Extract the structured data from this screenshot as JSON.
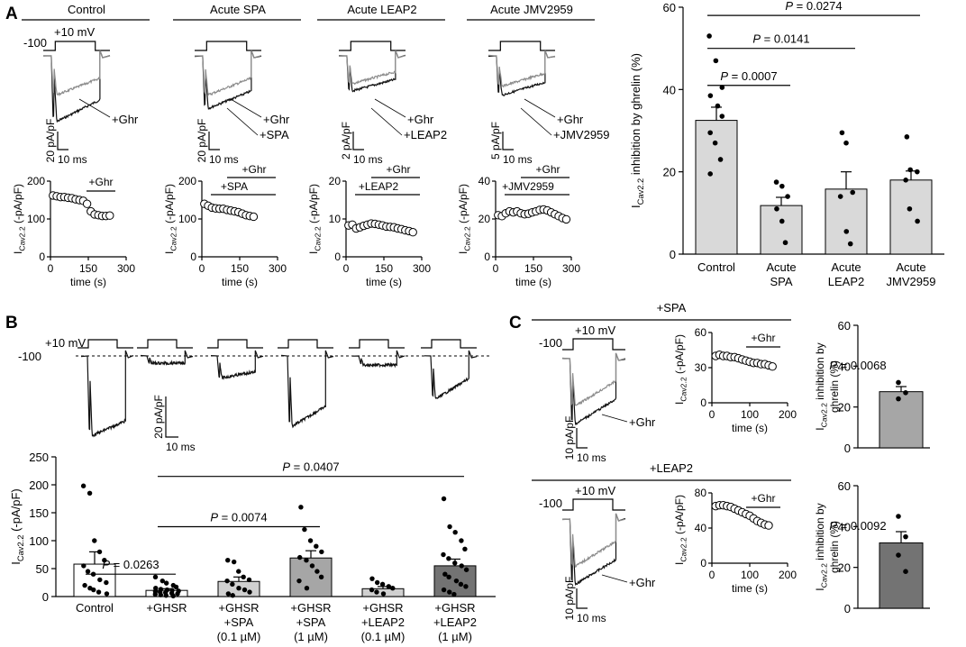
{
  "panels": {
    "a": "A",
    "b": "B",
    "c": "C"
  },
  "panelA": {
    "groups": [
      {
        "title": "Control",
        "hold": "-100",
        "step": "+10 mV",
        "trace_labels": [
          "+Ghr"
        ],
        "scale_current": "20 pA/pF",
        "scale_time": "10 ms",
        "tc_labels": [
          "+Ghr"
        ],
        "tc_yticks": [
          "0",
          "100",
          "200"
        ],
        "tc_xticks": [
          "0",
          "150",
          "300"
        ]
      },
      {
        "title": "Acute SPA",
        "trace_labels": [
          "+Ghr",
          "+SPA"
        ],
        "scale_current": "20 pA/pF",
        "scale_time": "10 ms",
        "tc_labels": [
          "+Ghr",
          "+SPA"
        ],
        "tc_yticks": [
          "0",
          "100",
          "200"
        ],
        "tc_xticks": [
          "0",
          "150",
          "300"
        ]
      },
      {
        "title": "Acute LEAP2",
        "trace_labels": [
          "+Ghr",
          "+LEAP2"
        ],
        "scale_current": "2 pA/pF",
        "scale_time": "10 ms",
        "tc_labels": [
          "+Ghr",
          "+LEAP2"
        ],
        "tc_yticks": [
          "0",
          "10",
          "20"
        ],
        "tc_xticks": [
          "0",
          "150",
          "300"
        ]
      },
      {
        "title": "Acute JMV2959",
        "trace_labels": [
          "+Ghr",
          "+JMV2959"
        ],
        "scale_current": "5 pA/pF",
        "scale_time": "10 ms",
        "tc_labels": [
          "+Ghr",
          "+JMV2959"
        ],
        "tc_yticks": [
          "0",
          "20",
          "40"
        ],
        "tc_xticks": [
          "0",
          "150",
          "300"
        ]
      }
    ],
    "tc_ylabel_main": "I",
    "tc_ylabel_sub": "CaV2.2",
    "tc_ylabel_unit": " (-pA/pF)",
    "tc_xlabel": "time (s)"
  },
  "panelB": {
    "hold": "-100",
    "step": "+10 mV",
    "scale_current": "20 pA/pF",
    "scale_time": "10 ms",
    "ylabel_main": "I",
    "ylabel_sub": "CaV2.2",
    "ylabel_unit": " (-pA/pF)",
    "sig": [
      {
        "text": "P = 0.0263"
      },
      {
        "text": "P = 0.0074"
      },
      {
        "text": "P = 0.0407"
      }
    ],
    "xlabels": [
      [
        "Control"
      ],
      [
        "+GHSR"
      ],
      [
        "+GHSR",
        "+SPA",
        "(0.1 µM)"
      ],
      [
        "+GHSR",
        "+SPA",
        "(1 µM)"
      ],
      [
        "+GHSR",
        "+LEAP2",
        "(0.1 µM)"
      ],
      [
        "+GHSR",
        "+LEAP2",
        "(1 µM)"
      ]
    ]
  },
  "panelC": {
    "rows": [
      {
        "title": "+SPA",
        "hold": "-100",
        "step": "+10 mV",
        "trace_label": "+Ghr",
        "scale_current": "10 pA/pF",
        "scale_time": "10 ms",
        "tc_label": "+Ghr",
        "tc_yticks": [
          "0",
          "30",
          "60"
        ],
        "tc_xticks": [
          "0",
          "100",
          "200"
        ],
        "p": "P = 0.0068"
      },
      {
        "title": "+LEAP2",
        "hold": "-100",
        "step": "+10 mV",
        "trace_label": "+Ghr",
        "scale_current": "10 pA/pF",
        "scale_time": "10 ms",
        "tc_label": "+Ghr",
        "tc_yticks": [
          "0",
          "40",
          "80"
        ],
        "tc_xticks": [
          "0",
          "100",
          "200"
        ],
        "p": "P = 0.0092"
      }
    ],
    "tc_xlabel": "time (s)",
    "bar_ylabel_line1": "inhibition by",
    "bar_ylabel_line2": "ghrelin (%)"
  },
  "chart_data": [
    {
      "id": "A-bar",
      "type": "bar",
      "title": "",
      "ylabel": "ICaV2.2 inhibition by ghrelin (%)",
      "ylim": [
        0,
        60
      ],
      "yticks": [
        "0",
        "20",
        "40",
        "60"
      ],
      "categories": [
        [
          "Control"
        ],
        [
          "Acute",
          "SPA"
        ],
        [
          "Acute",
          "LEAP2"
        ],
        [
          "Acute",
          "JMV2959"
        ]
      ],
      "values": [
        32.5,
        11.8,
        15.8,
        18.0
      ],
      "errors": [
        3.2,
        2.0,
        4.2,
        2.2
      ],
      "colors": [
        "#d9d9d9",
        "#d9d9d9",
        "#d9d9d9",
        "#d9d9d9"
      ],
      "points": [
        [
          53,
          47,
          40.5,
          38.5,
          36,
          33.5,
          29.5,
          27,
          23,
          19.5
        ],
        [
          17.5,
          16.5,
          14,
          11,
          8,
          2.8
        ],
        [
          29.5,
          27,
          15,
          14,
          5.5,
          2.5
        ],
        [
          28.5,
          20.5,
          20,
          18,
          11,
          8
        ]
      ],
      "sig": [
        {
          "from": 0,
          "to": 1,
          "text": "P = 0.0007",
          "y": 41
        },
        {
          "from": 0,
          "to": 2,
          "text": "P = 0.0141",
          "y": 50
        },
        {
          "from": 0,
          "to": 3,
          "text": "P = 0.0274",
          "y": 58
        }
      ]
    },
    {
      "id": "B-bar",
      "type": "bar",
      "ylabel": "ICaV2.2 (-pA/pF)",
      "ylim": [
        0,
        250
      ],
      "yticks": [
        "0",
        "50",
        "100",
        "150",
        "200",
        "250"
      ],
      "categories": [
        "Control",
        "+GHSR",
        "+GHSR +SPA (0.1 µM)",
        "+GHSR +SPA (1 µM)",
        "+GHSR +LEAP2 (0.1 µM)",
        "+GHSR +LEAP2 (1 µM)"
      ],
      "values": [
        58,
        11,
        27,
        69,
        14,
        55
      ],
      "errors": [
        22,
        3,
        8,
        13,
        4,
        12
      ],
      "colors": [
        "#ffffff",
        "#ffffff",
        "#d0d0d0",
        "#a6a6a6",
        "#d0d0d0",
        "#737373"
      ],
      "points": [
        [
          198,
          185,
          100,
          80,
          65,
          55,
          45,
          40,
          30,
          25,
          20,
          15,
          12,
          8,
          5
        ],
        [
          35,
          28,
          24,
          20,
          17,
          15,
          13,
          12,
          11,
          10,
          9,
          8,
          7,
          6,
          5,
          4,
          3,
          2,
          1
        ],
        [
          65,
          62,
          45,
          35,
          30,
          28,
          22,
          15,
          12,
          8,
          5,
          2
        ],
        [
          160,
          120,
          100,
          90,
          80,
          70,
          65,
          55,
          45,
          35,
          28,
          15
        ],
        [
          32,
          25,
          22,
          18,
          15,
          12,
          8,
          5
        ],
        [
          175,
          125,
          115,
          100,
          85,
          75,
          68,
          60,
          55,
          48,
          40,
          35,
          28,
          22,
          18,
          12,
          8,
          4
        ]
      ],
      "sig": [
        {
          "from": 0,
          "to": 1,
          "text": "P = 0.0263",
          "y": 40
        },
        {
          "from": 1,
          "to": 3,
          "text": "P = 0.0074",
          "y": 125
        },
        {
          "from": 1,
          "to": 5,
          "text": "P = 0.0407",
          "y": 215
        }
      ]
    },
    {
      "id": "C-bar-SPA",
      "type": "bar",
      "ylabel": "ICaV2.2 inhibition by ghrelin (%)",
      "ylim": [
        0,
        60
      ],
      "yticks": [
        "0",
        "20",
        "40",
        "60"
      ],
      "values": [
        27.5
      ],
      "errors": [
        2.5
      ],
      "colors": [
        "#a6a6a6"
      ],
      "points": [
        [
          32,
          27,
          24
        ]
      ],
      "p": "P = 0.0068"
    },
    {
      "id": "C-bar-LEAP2",
      "type": "bar",
      "ylabel": "ICaV2.2 inhibition by ghrelin (%)",
      "ylim": [
        0,
        60
      ],
      "yticks": [
        "0",
        "20",
        "40",
        "60"
      ],
      "values": [
        32
      ],
      "errors": [
        5.5
      ],
      "colors": [
        "#737373"
      ],
      "points": [
        [
          45,
          35,
          26,
          18
        ]
      ],
      "p": "P = 0.0092"
    },
    {
      "id": "A-timecourse",
      "type": "scatter",
      "xlabel": "time (s)",
      "series": [
        {
          "name": "Control",
          "x": [
            10,
            25,
            40,
            55,
            70,
            85,
            100,
            115,
            130,
            145,
            160,
            175,
            190,
            205,
            220,
            235
          ],
          "y": [
            162,
            160,
            158,
            158,
            156,
            155,
            152,
            150,
            148,
            140,
            120,
            112,
            110,
            108,
            108,
            109
          ]
        },
        {
          "name": "Acute SPA",
          "x": [
            10,
            25,
            40,
            55,
            70,
            85,
            100,
            115,
            130,
            145,
            160,
            175,
            190,
            205
          ],
          "y": [
            140,
            135,
            130,
            128,
            127,
            127,
            124,
            122,
            120,
            118,
            114,
            110,
            108,
            106
          ]
        },
        {
          "name": "Acute LEAP2",
          "x": [
            10,
            25,
            40,
            55,
            70,
            85,
            100,
            115,
            130,
            145,
            160,
            175,
            190,
            205,
            220,
            235,
            250,
            265
          ],
          "y": [
            8.3,
            8.5,
            7.5,
            7.8,
            8.2,
            8.5,
            8.8,
            8.7,
            8.5,
            8.3,
            8.0,
            7.9,
            7.8,
            7.5,
            7.3,
            7.0,
            6.8,
            6.5
          ]
        },
        {
          "name": "Acute JMV2959",
          "x": [
            10,
            25,
            40,
            55,
            70,
            85,
            100,
            115,
            130,
            145,
            160,
            175,
            190,
            205,
            220,
            235,
            250,
            265,
            280
          ],
          "y": [
            22,
            21.5,
            23,
            24,
            23.5,
            24,
            23,
            22.5,
            22.8,
            23.5,
            24,
            24.8,
            25,
            24.5,
            23.5,
            22.5,
            21.5,
            20.5,
            19.8
          ]
        }
      ]
    },
    {
      "id": "C-timecourse",
      "type": "scatter",
      "xlabel": "time (s)",
      "series": [
        {
          "name": "+SPA",
          "x": [
            10,
            20,
            30,
            40,
            50,
            60,
            70,
            80,
            90,
            100,
            110,
            120,
            130,
            140,
            150,
            160
          ],
          "y": [
            40,
            41,
            40,
            40,
            39,
            39,
            38,
            37,
            36,
            35,
            34,
            34,
            33,
            33,
            32,
            31
          ]
        },
        {
          "name": "+LEAP2",
          "x": [
            10,
            20,
            30,
            40,
            50,
            60,
            70,
            80,
            90,
            100,
            110,
            120,
            130,
            140,
            150
          ],
          "y": [
            65,
            66,
            66,
            65,
            64,
            62,
            60,
            58,
            56,
            54,
            51,
            48,
            46,
            44,
            43
          ]
        }
      ]
    }
  ]
}
